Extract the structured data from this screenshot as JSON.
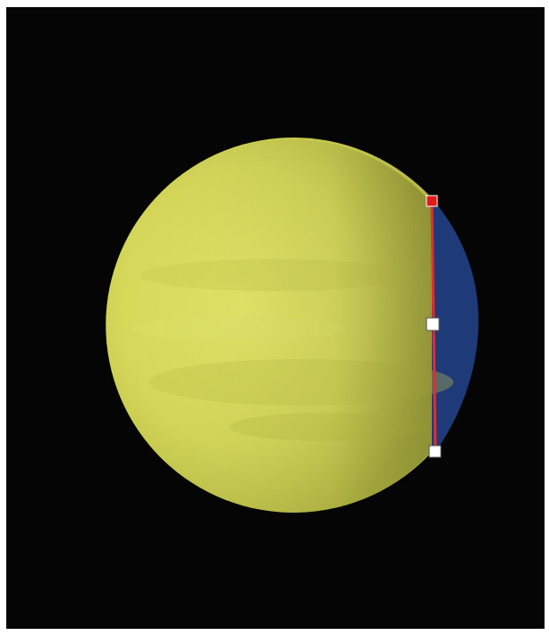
{
  "viewer": {
    "background_color": "#050505",
    "planet_color": "#d9dc5c",
    "overlay_color": "#1f3a78",
    "measure_line_color": "#e52b2b",
    "handle_active_color": "#e01b1b",
    "handle_color": "#ffffff"
  }
}
